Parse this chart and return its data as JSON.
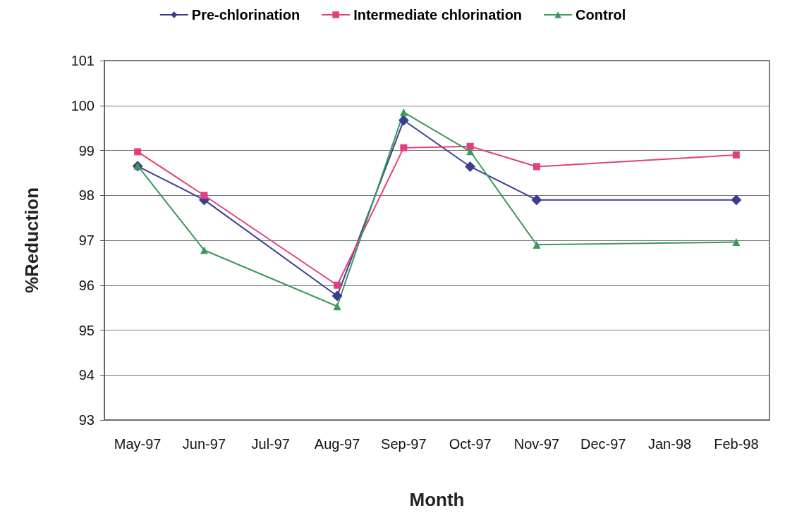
{
  "chart_data": {
    "type": "line",
    "xlabel": "Month",
    "ylabel": "%Reduction",
    "categories": [
      "May-97",
      "Jun-97",
      "Jul-97",
      "Aug-97",
      "Sep-97",
      "Oct-97",
      "Nov-97",
      "Dec-97",
      "Jan-98",
      "Feb-98"
    ],
    "series": [
      {
        "name": "Pre-chlorination",
        "color": "#3d3d8f",
        "marker": "diamond",
        "values": [
          98.65,
          97.9,
          null,
          95.76,
          99.67,
          98.64,
          97.9,
          null,
          null,
          97.9
        ]
      },
      {
        "name": "Intermediate chlorination",
        "color": "#e0407e",
        "marker": "square",
        "values": [
          98.97,
          98.0,
          null,
          96.0,
          99.06,
          99.09,
          98.64,
          null,
          null,
          98.9
        ]
      },
      {
        "name": "Control",
        "color": "#3a9a5c",
        "marker": "triangle",
        "values": [
          98.66,
          96.78,
          null,
          95.53,
          99.85,
          98.98,
          96.9,
          null,
          null,
          96.96
        ]
      }
    ],
    "ylim": [
      93,
      101
    ],
    "yticks": [
      93,
      94,
      95,
      96,
      97,
      98,
      99,
      100,
      101
    ],
    "grid": "y",
    "legend": "top",
    "line_style": "solid"
  }
}
